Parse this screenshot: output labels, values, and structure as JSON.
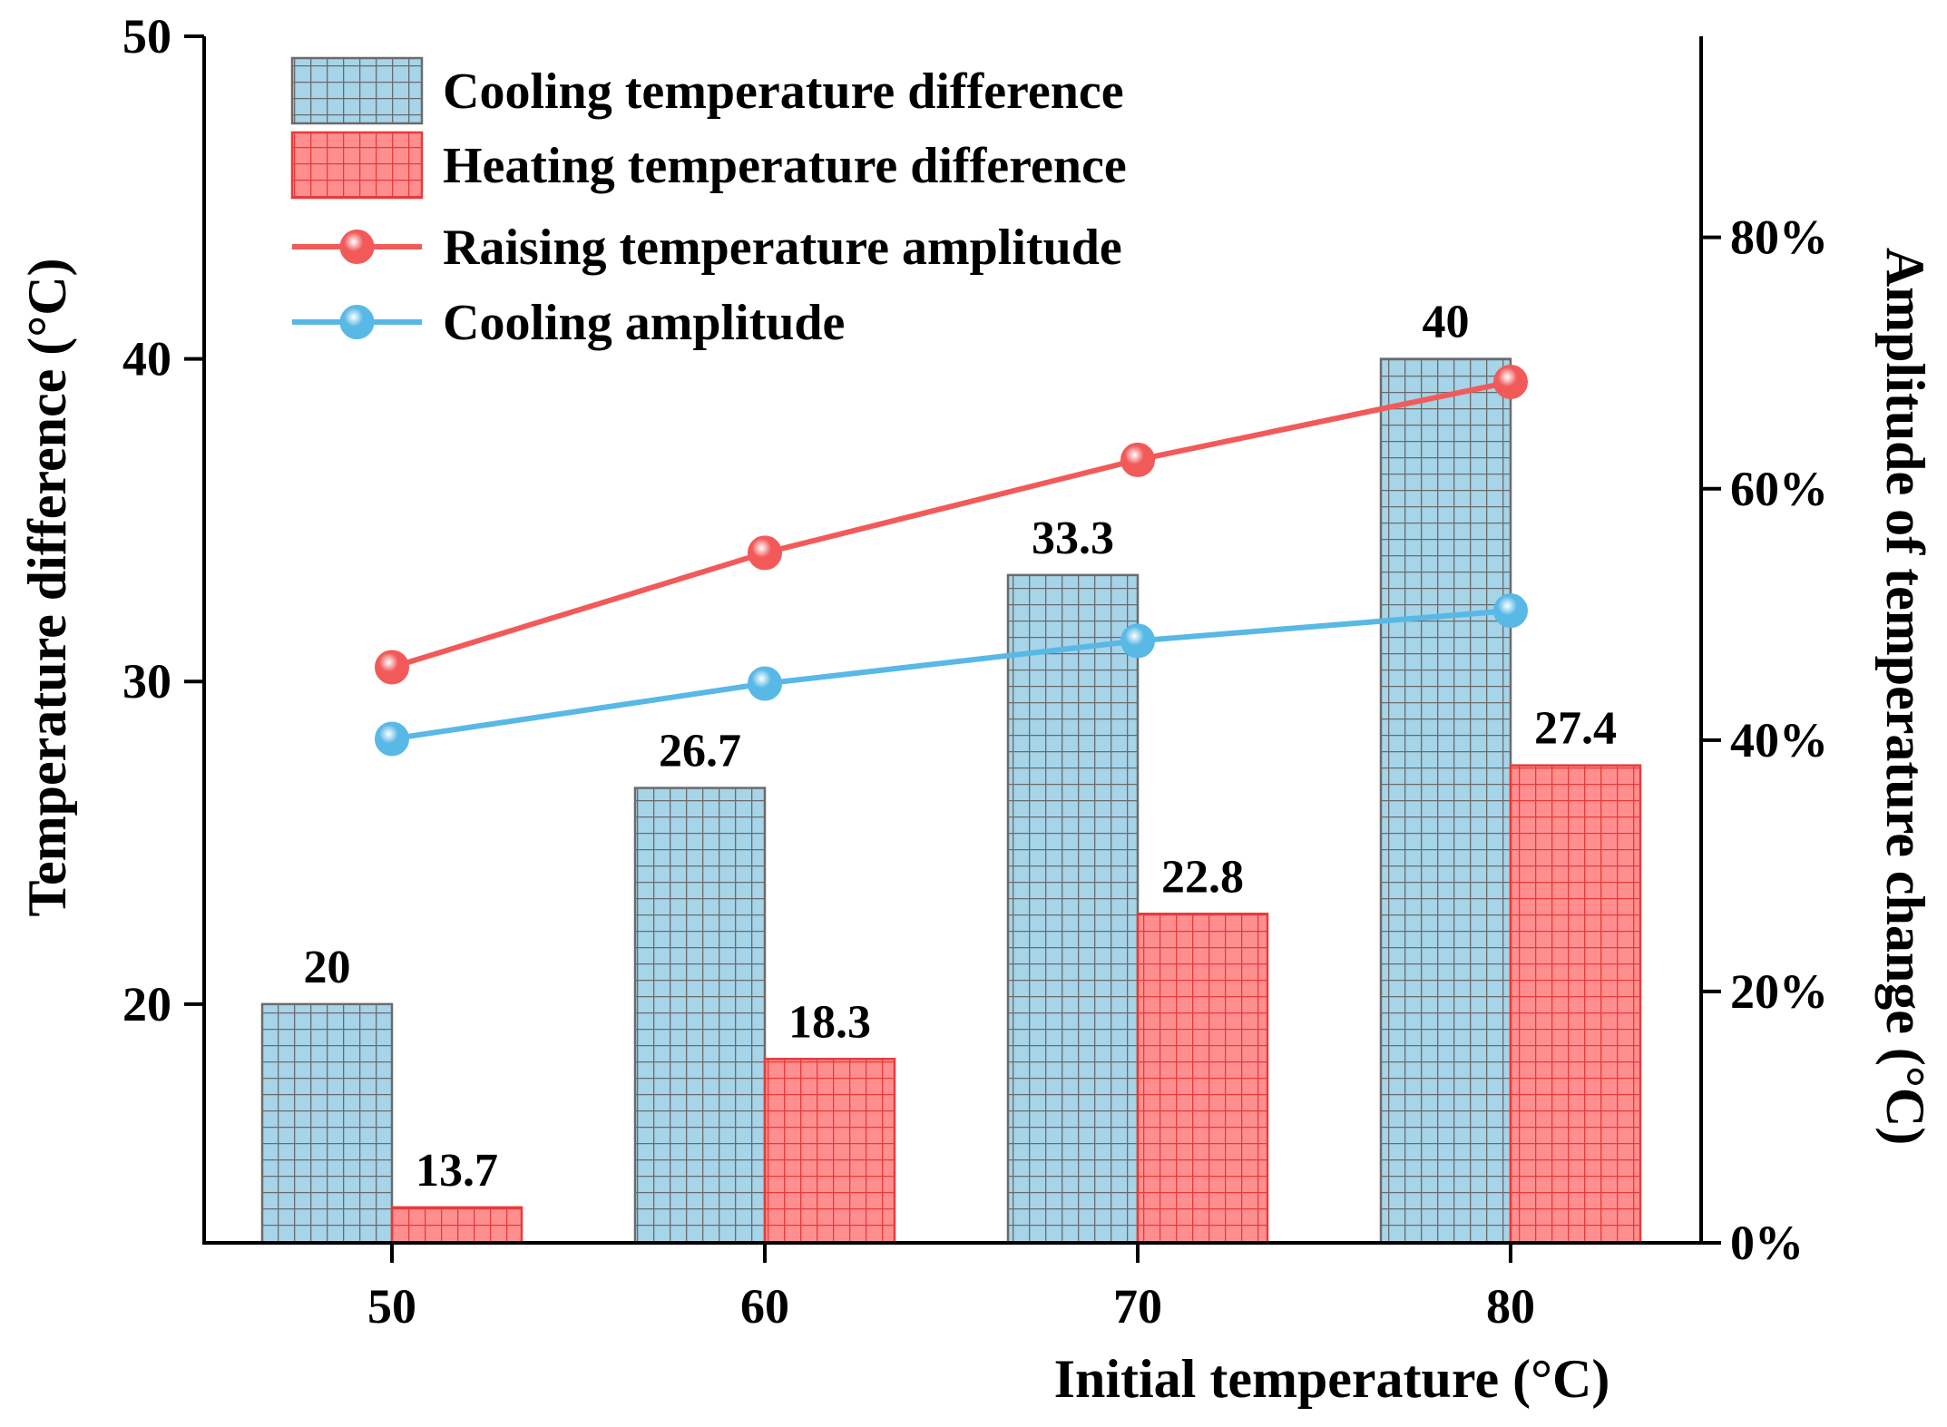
{
  "chart_data": {
    "type": "bar",
    "categories": [
      "50",
      "60",
      "70",
      "80"
    ],
    "xlabel": "Initial temperature (°C)",
    "ylabel": "Temperature difference (°C)",
    "ylabel_right": "Amplitude of temperature change (°C)",
    "ylim": [
      12.6,
      50
    ],
    "yticks": [
      20,
      30,
      40,
      50
    ],
    "ylim_right": [
      0,
      96
    ],
    "yticks_right": [
      0,
      20,
      40,
      60,
      80
    ],
    "yticks_right_labels": [
      "0%",
      "20%",
      "40%",
      "60%",
      "80%"
    ],
    "grid": false,
    "legend_position": "top-left",
    "series": [
      {
        "name": "Cooling temperature difference",
        "kind": "bar",
        "values": [
          20,
          26.7,
          33.3,
          40
        ],
        "labels": [
          "20",
          "26.7",
          "33.3",
          "40"
        ],
        "color": "#a6d4e8",
        "grid_color": "#6b6b6b"
      },
      {
        "name": "Heating temperature difference",
        "kind": "bar",
        "values": [
          13.7,
          18.3,
          22.8,
          27.4
        ],
        "labels": [
          "13.7",
          "18.3",
          "22.8",
          "27.4"
        ],
        "color": "#ff8f8f",
        "grid_color": "#e83a3a"
      },
      {
        "name": "Raising temperature amplitude",
        "kind": "line",
        "axis": "right",
        "values": [
          45.8,
          54.9,
          62.3,
          68.5
        ],
        "color": "#f25a5a"
      },
      {
        "name": "Cooling amplitude",
        "kind": "line",
        "axis": "right",
        "values": [
          40.1,
          44.5,
          47.9,
          50.3
        ],
        "color": "#58b8e6"
      }
    ]
  }
}
